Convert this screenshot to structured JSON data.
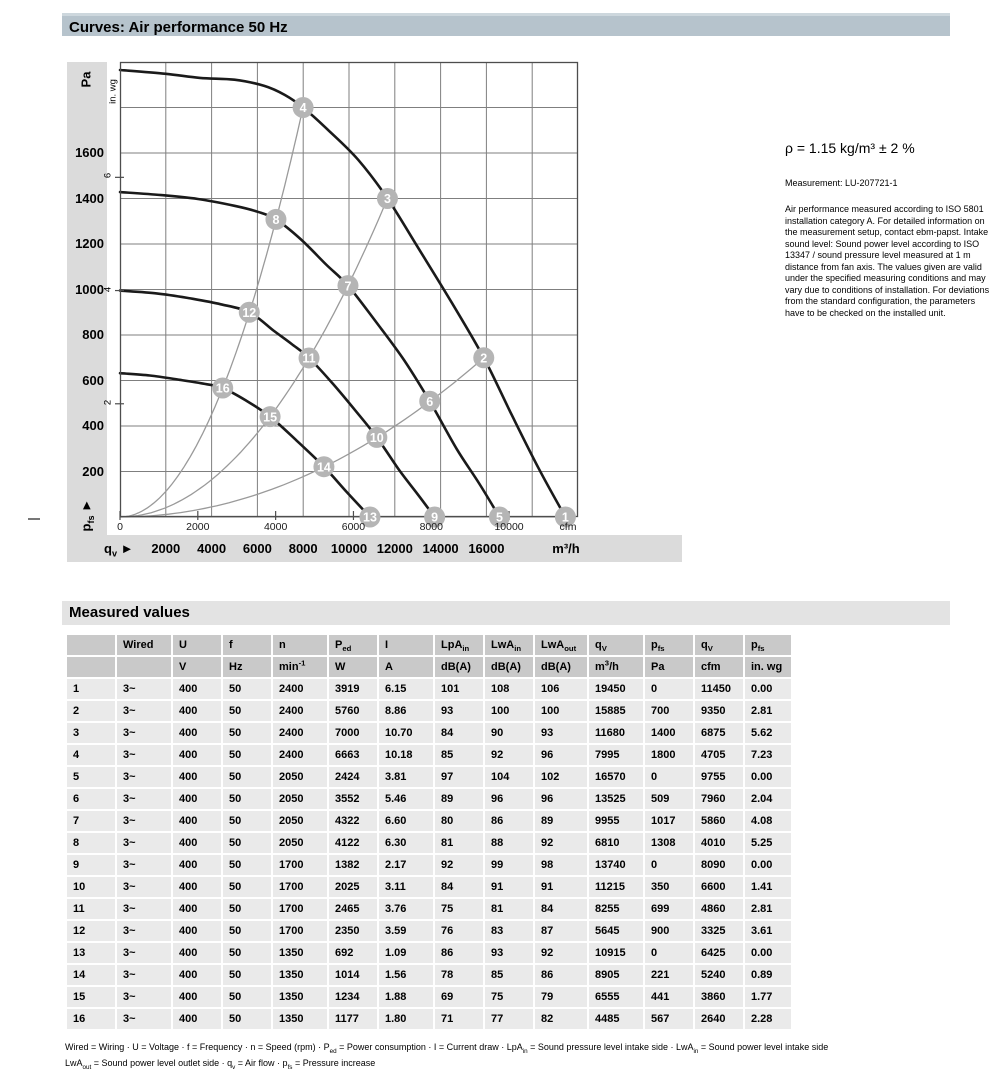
{
  "colors": {
    "title_bar_bg": "#b6c3cc",
    "title_bar_top": "#cdd7dd",
    "section_bar_bg": "#e3e3e3",
    "band_bg": "#dbdbdb",
    "table_header_bg": "#c9c9c9",
    "table_row_bg": "#eaeaea",
    "curve": "#1a1a1a",
    "grid": "#7f7f7f",
    "load_curve": "#9a9a9a",
    "point_fill": "#b5b5b5",
    "point_text": "#ffffff"
  },
  "sections": {
    "curves_title": "Curves: Air performance 50 Hz",
    "measured_title": "Measured values"
  },
  "side_text": {
    "density": "ρ = 1.15 kg/m³ ± 2 %",
    "measurement": "Measurement: LU-207721-1",
    "paragraph": "Air performance measured according to ISO 5801 installation category A. For detailed information on the measurement setup, contact ebm-papst. Intake sound level: Sound power level according to ISO 13347 / sound pressure level measured at 1 m distance from fan axis. The values given are valid under the specified measuring conditions and may vary due to conditions of installation. For deviations from the standard configuration, the parameters have to be checked on the installed unit."
  },
  "chart": {
    "y_unit_left": "Pa",
    "y_unit_inner": "in. wg",
    "y_axis_label_base": "p",
    "y_axis_label_sub": "fs",
    "x_axis_label_base": "q",
    "x_axis_label_sub": "v",
    "axis_arrow": "►",
    "x_unit_inner": "cfm",
    "x_unit_outer": "m³/h"
  },
  "chart_data": {
    "type": "line",
    "title": "Curves: Air performance 50 Hz",
    "xlabel": "qv (m³/h)",
    "ylabel": "pfs (Pa)",
    "xlim": [
      0,
      20000
    ],
    "ylim": [
      0,
      2000
    ],
    "x_grid_step_m3h": 2000,
    "y_grid_step_pa": 200,
    "x_ticks_m3h": [
      2000,
      4000,
      6000,
      8000,
      10000,
      12000,
      14000,
      16000
    ],
    "x_ticks_cfm": [
      0,
      2000,
      4000,
      6000,
      8000,
      10000
    ],
    "y_ticks_pa": [
      1600,
      1400,
      1200,
      1000,
      800,
      600,
      400,
      200
    ],
    "y_ticks_inwg": [
      6,
      4,
      2
    ],
    "m3h_per_cfm": 1.699011,
    "pa_per_inwg": 248.84,
    "series": [
      {
        "name": "fan-curve-2400-rpm",
        "points": [
          [
            0,
            1965
          ],
          [
            2000,
            1948
          ],
          [
            3500,
            1930
          ],
          [
            5000,
            1922
          ],
          [
            6300,
            1895
          ],
          [
            7200,
            1855
          ],
          [
            7995,
            1800
          ],
          [
            9100,
            1700
          ],
          [
            10400,
            1570
          ],
          [
            11680,
            1400
          ],
          [
            13100,
            1170
          ],
          [
            14500,
            940
          ],
          [
            15885,
            700
          ],
          [
            17100,
            450
          ],
          [
            18300,
            210
          ],
          [
            19450,
            0
          ]
        ]
      },
      {
        "name": "fan-curve-2050-rpm",
        "points": [
          [
            0,
            1428
          ],
          [
            1800,
            1415
          ],
          [
            3400,
            1398
          ],
          [
            5000,
            1368
          ],
          [
            6000,
            1342
          ],
          [
            6810,
            1308
          ],
          [
            7900,
            1220
          ],
          [
            9000,
            1110
          ],
          [
            9955,
            1017
          ],
          [
            11200,
            855
          ],
          [
            12400,
            690
          ],
          [
            13525,
            509
          ],
          [
            14700,
            300
          ],
          [
            15700,
            145
          ],
          [
            16570,
            0
          ]
        ]
      },
      {
        "name": "fan-curve-1700-rpm",
        "points": [
          [
            0,
            995
          ],
          [
            1600,
            983
          ],
          [
            3000,
            962
          ],
          [
            4400,
            935
          ],
          [
            5645,
            900
          ],
          [
            6700,
            820
          ],
          [
            7500,
            760
          ],
          [
            8255,
            699
          ],
          [
            9300,
            585
          ],
          [
            10300,
            465
          ],
          [
            11215,
            350
          ],
          [
            12200,
            205
          ],
          [
            13000,
            100
          ],
          [
            13740,
            0
          ]
        ]
      },
      {
        "name": "fan-curve-1350-rpm",
        "points": [
          [
            0,
            632
          ],
          [
            1300,
            622
          ],
          [
            2600,
            603
          ],
          [
            3700,
            585
          ],
          [
            4485,
            567
          ],
          [
            5500,
            512
          ],
          [
            6555,
            441
          ],
          [
            7700,
            337
          ],
          [
            8905,
            221
          ],
          [
            9900,
            110
          ],
          [
            10915,
            0
          ]
        ]
      }
    ],
    "load_curves": [
      {
        "q_end": 7995,
        "p_end": 1800
      },
      {
        "q_end": 11680,
        "p_end": 1400
      },
      {
        "q_end": 15885,
        "p_end": 700
      },
      {
        "q_end": 19450,
        "p_end": 0
      }
    ],
    "operating_points": [
      {
        "id": 1,
        "qv": 19450,
        "pfs": 0
      },
      {
        "id": 2,
        "qv": 15885,
        "pfs": 700
      },
      {
        "id": 3,
        "qv": 11680,
        "pfs": 1400
      },
      {
        "id": 4,
        "qv": 7995,
        "pfs": 1800
      },
      {
        "id": 5,
        "qv": 16570,
        "pfs": 0
      },
      {
        "id": 6,
        "qv": 13525,
        "pfs": 509
      },
      {
        "id": 7,
        "qv": 9955,
        "pfs": 1017
      },
      {
        "id": 8,
        "qv": 6810,
        "pfs": 1308
      },
      {
        "id": 9,
        "qv": 13740,
        "pfs": 0
      },
      {
        "id": 10,
        "qv": 11215,
        "pfs": 350
      },
      {
        "id": 11,
        "qv": 8255,
        "pfs": 699
      },
      {
        "id": 12,
        "qv": 5645,
        "pfs": 900
      },
      {
        "id": 13,
        "qv": 10915,
        "pfs": 0
      },
      {
        "id": 14,
        "qv": 8905,
        "pfs": 221
      },
      {
        "id": 15,
        "qv": 6555,
        "pfs": 441
      },
      {
        "id": 16,
        "qv": 4485,
        "pfs": 567
      }
    ]
  },
  "table": {
    "headers": [
      [],
      [
        {
          "t": "Wired"
        }
      ],
      [
        {
          "t": "U"
        }
      ],
      [
        {
          "t": "f"
        }
      ],
      [
        {
          "t": "n"
        }
      ],
      [
        {
          "t": "P"
        },
        {
          "t": "ed",
          "s": "sub"
        }
      ],
      [
        {
          "t": "I"
        }
      ],
      [
        {
          "t": "LpA"
        },
        {
          "t": "in",
          "s": "sub"
        }
      ],
      [
        {
          "t": "LwA"
        },
        {
          "t": "in",
          "s": "sub"
        }
      ],
      [
        {
          "t": "LwA"
        },
        {
          "t": "out",
          "s": "sub"
        }
      ],
      [
        {
          "t": "q"
        },
        {
          "t": "V",
          "s": "sub"
        }
      ],
      [
        {
          "t": "p"
        },
        {
          "t": "fs",
          "s": "sub"
        }
      ],
      [
        {
          "t": "q"
        },
        {
          "t": "V",
          "s": "sub"
        }
      ],
      [
        {
          "t": "p"
        },
        {
          "t": "fs",
          "s": "sub"
        }
      ]
    ],
    "units": [
      [],
      [],
      [
        {
          "t": "V"
        }
      ],
      [
        {
          "t": "Hz"
        }
      ],
      [
        {
          "t": "min"
        },
        {
          "t": "-1",
          "s": "sup"
        }
      ],
      [
        {
          "t": "W"
        }
      ],
      [
        {
          "t": "A"
        }
      ],
      [
        {
          "t": "dB(A)"
        }
      ],
      [
        {
          "t": "dB(A)"
        }
      ],
      [
        {
          "t": "dB(A)"
        }
      ],
      [
        {
          "t": "m"
        },
        {
          "t": "3",
          "s": "sup"
        },
        {
          "t": "/h"
        }
      ],
      [
        {
          "t": "Pa"
        }
      ],
      [
        {
          "t": "cfm"
        }
      ],
      [
        {
          "t": "in. wg"
        }
      ]
    ],
    "rows": [
      [
        "1",
        "3~",
        "400",
        "50",
        "2400",
        "3919",
        "6.15",
        "101",
        "108",
        "106",
        "19450",
        "0",
        "11450",
        "0.00"
      ],
      [
        "2",
        "3~",
        "400",
        "50",
        "2400",
        "5760",
        "8.86",
        "93",
        "100",
        "100",
        "15885",
        "700",
        "9350",
        "2.81"
      ],
      [
        "3",
        "3~",
        "400",
        "50",
        "2400",
        "7000",
        "10.70",
        "84",
        "90",
        "93",
        "11680",
        "1400",
        "6875",
        "5.62"
      ],
      [
        "4",
        "3~",
        "400",
        "50",
        "2400",
        "6663",
        "10.18",
        "85",
        "92",
        "96",
        "7995",
        "1800",
        "4705",
        "7.23"
      ],
      [
        "5",
        "3~",
        "400",
        "50",
        "2050",
        "2424",
        "3.81",
        "97",
        "104",
        "102",
        "16570",
        "0",
        "9755",
        "0.00"
      ],
      [
        "6",
        "3~",
        "400",
        "50",
        "2050",
        "3552",
        "5.46",
        "89",
        "96",
        "96",
        "13525",
        "509",
        "7960",
        "2.04"
      ],
      [
        "7",
        "3~",
        "400",
        "50",
        "2050",
        "4322",
        "6.60",
        "80",
        "86",
        "89",
        "9955",
        "1017",
        "5860",
        "4.08"
      ],
      [
        "8",
        "3~",
        "400",
        "50",
        "2050",
        "4122",
        "6.30",
        "81",
        "88",
        "92",
        "6810",
        "1308",
        "4010",
        "5.25"
      ],
      [
        "9",
        "3~",
        "400",
        "50",
        "1700",
        "1382",
        "2.17",
        "92",
        "99",
        "98",
        "13740",
        "0",
        "8090",
        "0.00"
      ],
      [
        "10",
        "3~",
        "400",
        "50",
        "1700",
        "2025",
        "3.11",
        "84",
        "91",
        "91",
        "11215",
        "350",
        "6600",
        "1.41"
      ],
      [
        "11",
        "3~",
        "400",
        "50",
        "1700",
        "2465",
        "3.76",
        "75",
        "81",
        "84",
        "8255",
        "699",
        "4860",
        "2.81"
      ],
      [
        "12",
        "3~",
        "400",
        "50",
        "1700",
        "2350",
        "3.59",
        "76",
        "83",
        "87",
        "5645",
        "900",
        "3325",
        "3.61"
      ],
      [
        "13",
        "3~",
        "400",
        "50",
        "1350",
        "692",
        "1.09",
        "86",
        "93",
        "92",
        "10915",
        "0",
        "6425",
        "0.00"
      ],
      [
        "14",
        "3~",
        "400",
        "50",
        "1350",
        "1014",
        "1.56",
        "78",
        "85",
        "86",
        "8905",
        "221",
        "5240",
        "0.89"
      ],
      [
        "15",
        "3~",
        "400",
        "50",
        "1350",
        "1234",
        "1.88",
        "69",
        "75",
        "79",
        "6555",
        "441",
        "3860",
        "1.77"
      ],
      [
        "16",
        "3~",
        "400",
        "50",
        "1350",
        "1177",
        "1.80",
        "71",
        "77",
        "82",
        "4485",
        "567",
        "2640",
        "2.28"
      ]
    ]
  },
  "footnote": {
    "line1": [
      {
        "t": "Wired = Wiring · U = Voltage · f = Frequency · n = Speed (rpm) · P"
      },
      {
        "t": "ed",
        "s": "sub"
      },
      {
        "t": " = Power consumption · I = Current draw · LpA"
      },
      {
        "t": "in",
        "s": "sub"
      },
      {
        "t": " = Sound pressure level intake side · LwA"
      },
      {
        "t": "in",
        "s": "sub"
      },
      {
        "t": " = Sound power level intake side"
      }
    ],
    "line2": [
      {
        "t": "LwA"
      },
      {
        "t": "out",
        "s": "sub"
      },
      {
        "t": " = Sound power level outlet side · q"
      },
      {
        "t": "v",
        "s": "sub"
      },
      {
        "t": " = Air flow · p"
      },
      {
        "t": "fs",
        "s": "sub"
      },
      {
        "t": " = Pressure increase"
      }
    ]
  }
}
